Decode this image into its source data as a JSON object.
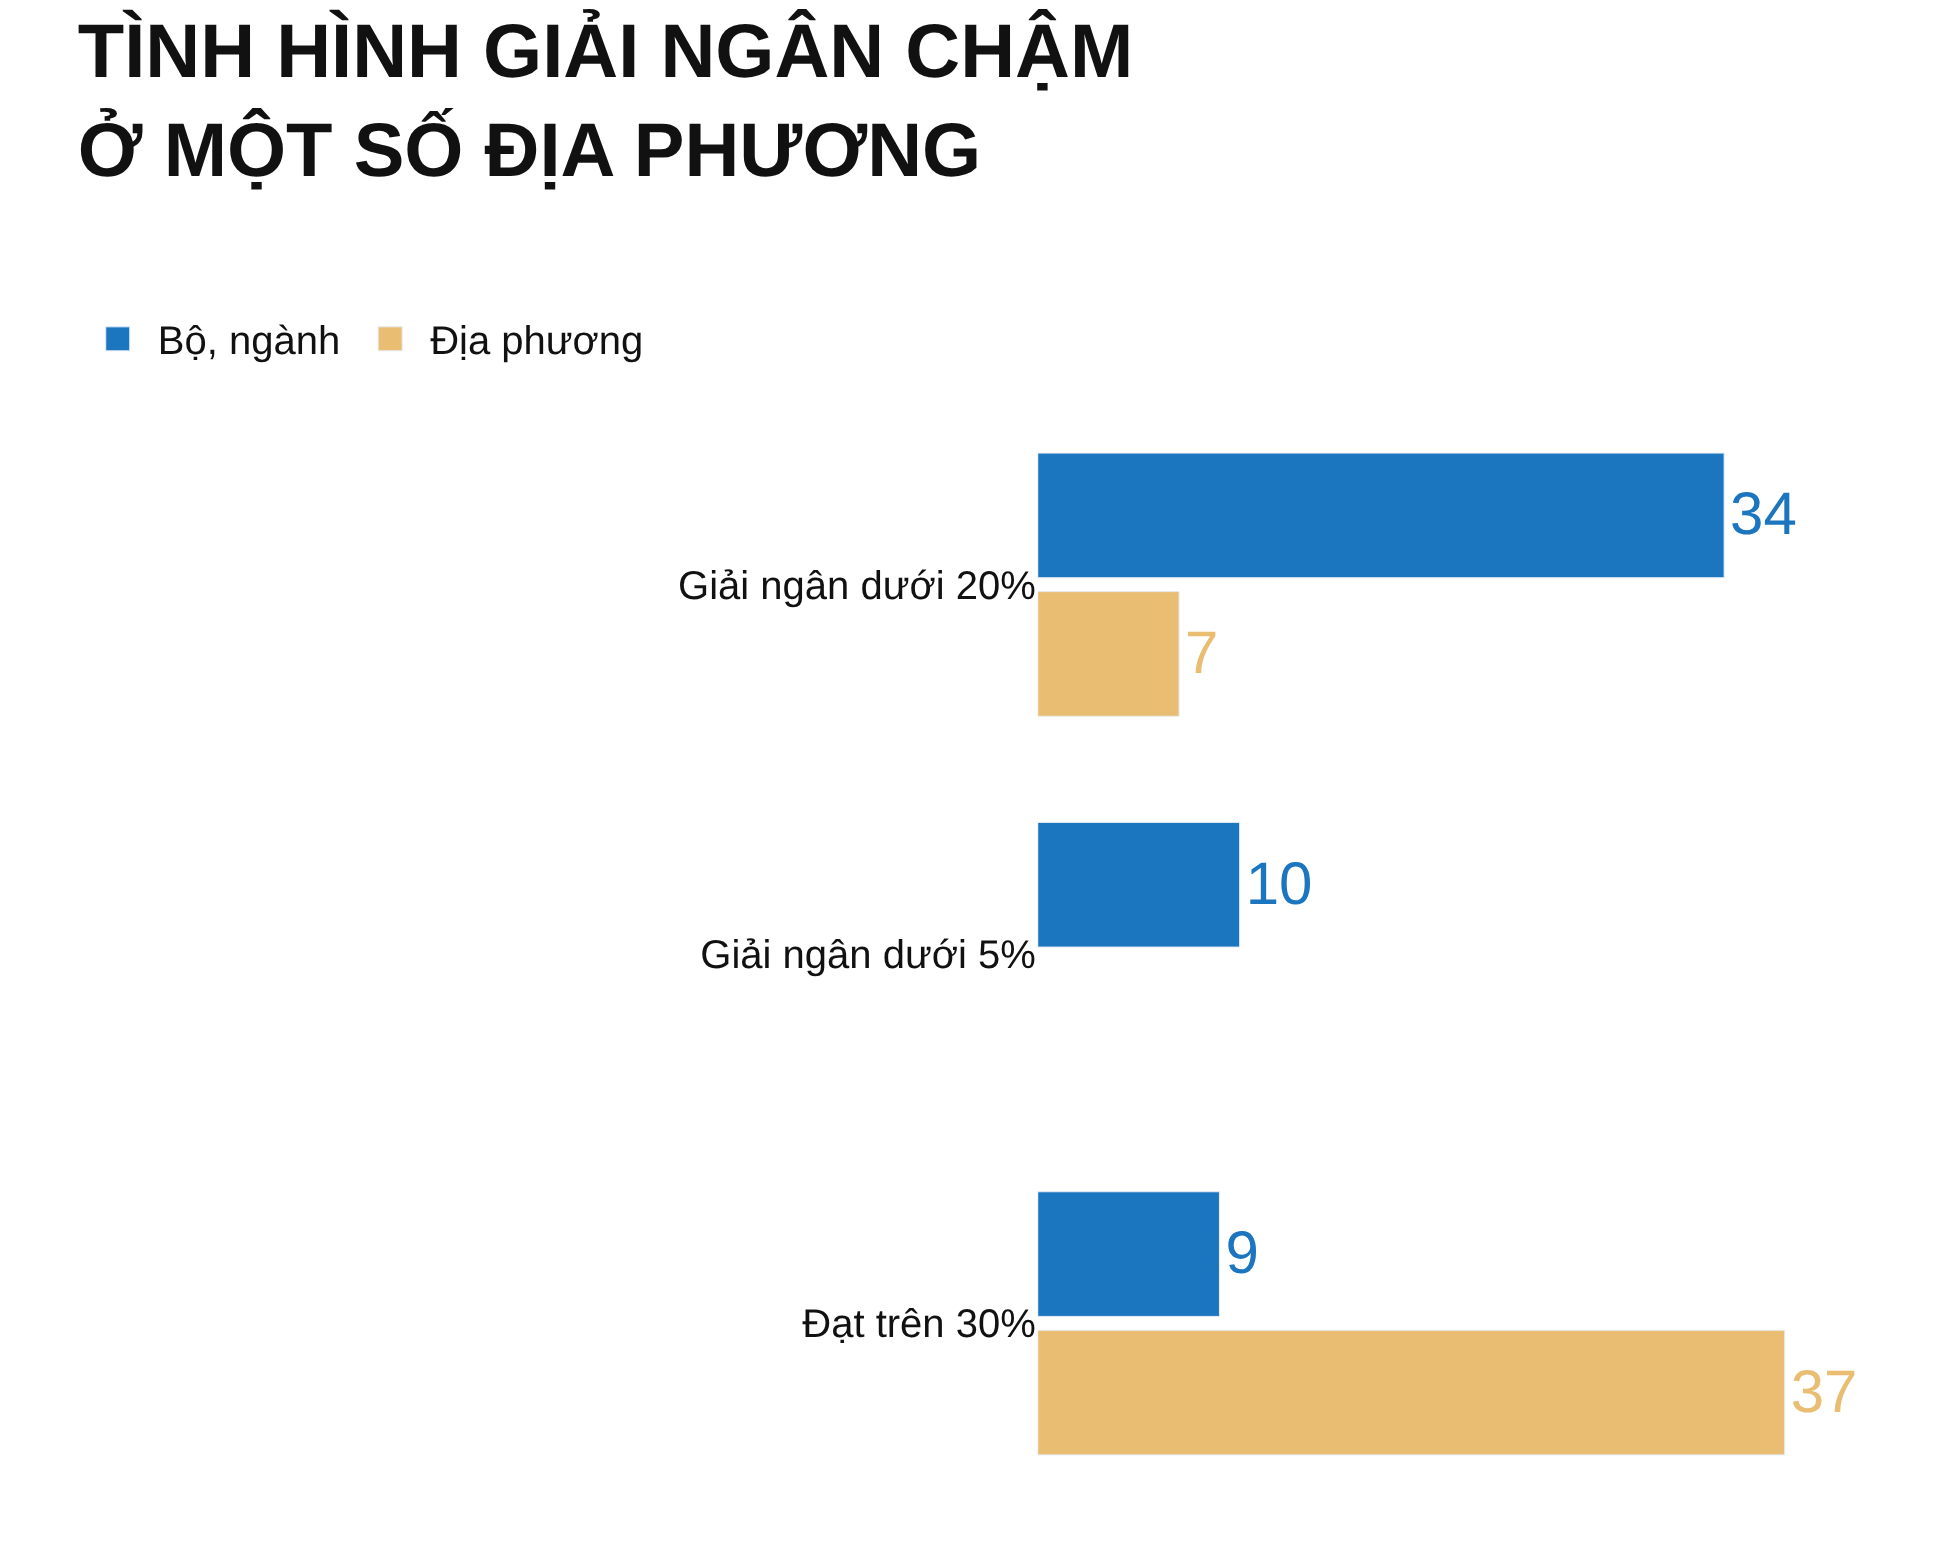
{
  "chart_data": {
    "type": "bar",
    "orientation": "horizontal",
    "title": "TÌNH HÌNH GIẢI NGÂN CHẬM\nỞ MỘT SỐ ĐỊA PHƯƠNG",
    "categories": [
      "Giải ngân dưới 20%",
      "Giải ngân dưới 5%",
      "Đạt trên 30%"
    ],
    "series": [
      {
        "name": "Bộ, ngành",
        "color": "#1b75bf",
        "values": [
          34,
          10,
          9
        ]
      },
      {
        "name": "Địa phương",
        "color": "#e9bd72",
        "values": [
          7,
          null,
          37
        ]
      }
    ],
    "data_labels": true,
    "legend": "top left"
  }
}
